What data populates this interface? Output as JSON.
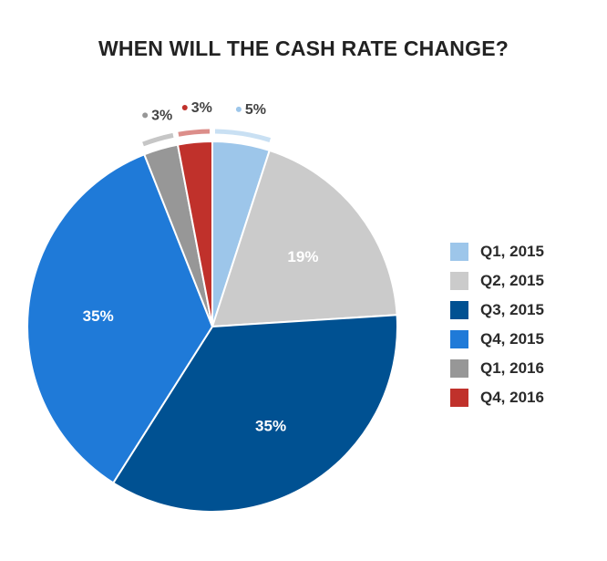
{
  "chart_data": {
    "type": "pie",
    "title": "WHEN WILL THE CASH RATE CHANGE?",
    "slices": [
      {
        "label": "Q1, 2015",
        "value": 5,
        "display": "5%",
        "color": "#9dc6ea",
        "label_text_color": "#444444",
        "outside": true
      },
      {
        "label": "Q2, 2015",
        "value": 19,
        "display": "19%",
        "color": "#cbcbcb",
        "label_text_color": "#ffffff",
        "outside": false
      },
      {
        "label": "Q3, 2015",
        "value": 35,
        "display": "35%",
        "color": "#005192",
        "label_text_color": "#ffffff",
        "outside": false
      },
      {
        "label": "Q4, 2015",
        "value": 35,
        "display": "35%",
        "color": "#1f7ad8",
        "label_text_color": "#ffffff",
        "outside": false
      },
      {
        "label": "Q1, 2016",
        "value": 3,
        "display": "3%",
        "color": "#979797",
        "label_text_color": "#444444",
        "outside": true
      },
      {
        "label": "Q4, 2016",
        "value": 3,
        "display": "3%",
        "color": "#c0312b",
        "label_text_color": "#444444",
        "outside": true
      }
    ],
    "legend_position": "right"
  }
}
